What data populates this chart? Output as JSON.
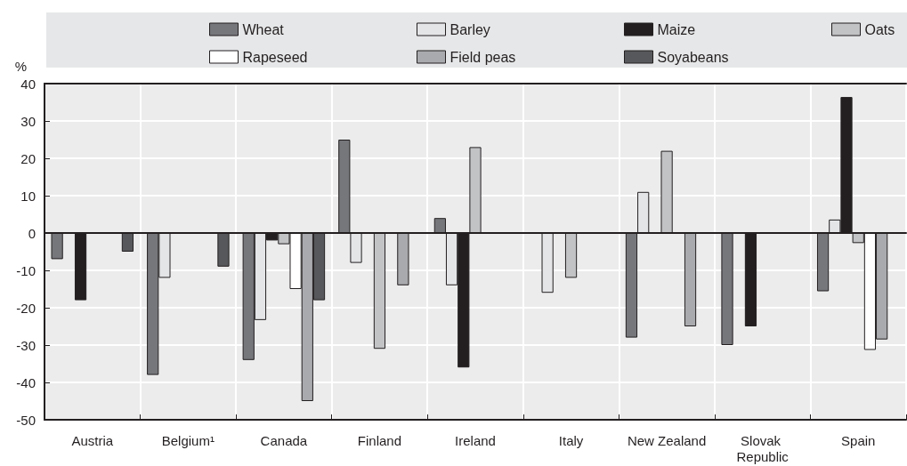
{
  "chart_data": {
    "type": "bar",
    "ylabel": "%",
    "categories": [
      "Austria",
      "Belgium¹",
      "Canada",
      "Finland",
      "Ireland",
      "Italy",
      "New Zealand",
      "Slovak Republic",
      "Spain"
    ],
    "series": [
      {
        "name": "Wheat",
        "color": "#76777b",
        "values": [
          -7,
          -38,
          -34,
          25,
          4,
          null,
          -28,
          -30,
          -15.6
        ]
      },
      {
        "name": "Barley",
        "color": "#e4e5e7",
        "values": [
          null,
          -12,
          -23.3,
          -8,
          -14,
          -16,
          11,
          null,
          3.6
        ]
      },
      {
        "name": "Maize",
        "color": "#231f20",
        "values": [
          -18,
          null,
          -2,
          null,
          -36,
          null,
          null,
          -25,
          36.4
        ]
      },
      {
        "name": "Oats",
        "color": "#c2c3c5",
        "values": [
          null,
          null,
          -3,
          -31,
          23,
          -12,
          22,
          null,
          -2.7
        ]
      },
      {
        "name": "Rapeseed",
        "color": "#ffffff",
        "values": [
          null,
          null,
          -15,
          null,
          null,
          null,
          null,
          null,
          -31.3
        ]
      },
      {
        "name": "Field peas",
        "color": "#a9aaad",
        "values": [
          null,
          null,
          -45,
          -14,
          null,
          null,
          -25,
          null,
          -28.5
        ]
      },
      {
        "name": "Soyabeans",
        "color": "#57585b",
        "values": [
          -5,
          -9,
          -18,
          null,
          null,
          null,
          null,
          null,
          null
        ]
      }
    ],
    "ylim": [
      -50,
      40
    ],
    "yticks": [
      -50,
      -40,
      -30,
      -20,
      -10,
      0,
      10,
      20,
      30,
      40
    ],
    "grid": true,
    "legend": "top"
  }
}
